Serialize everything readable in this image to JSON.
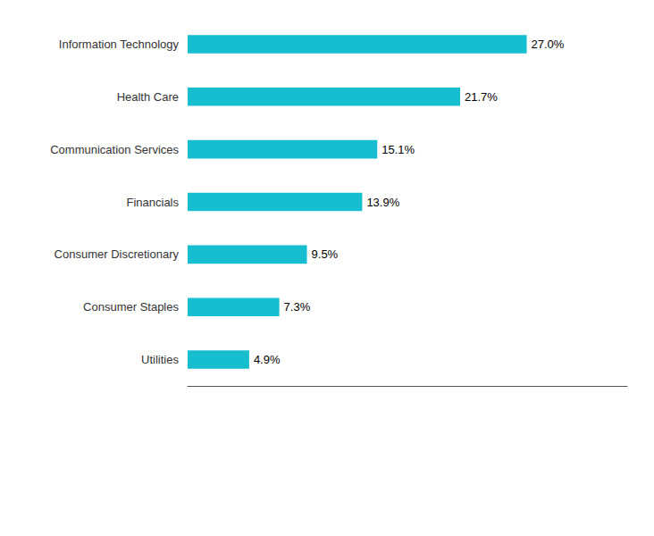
{
  "chart_data": {
    "type": "bar",
    "orientation": "horizontal",
    "categories": [
      "Information Technology",
      "Health Care",
      "Communication Services",
      "Financials",
      "Consumer Discretionary",
      "Consumer Staples",
      "Utilities"
    ],
    "values": [
      27.0,
      21.7,
      15.1,
      13.9,
      9.5,
      7.3,
      4.9
    ],
    "value_labels": [
      "27.0%",
      "21.7%",
      "15.1%",
      "13.9%",
      "9.5%",
      "7.3%",
      "4.9%"
    ],
    "color": "#17BECF",
    "xlim": [
      0,
      35
    ],
    "data_labels": true,
    "tick_labels": "y",
    "grid": false
  }
}
